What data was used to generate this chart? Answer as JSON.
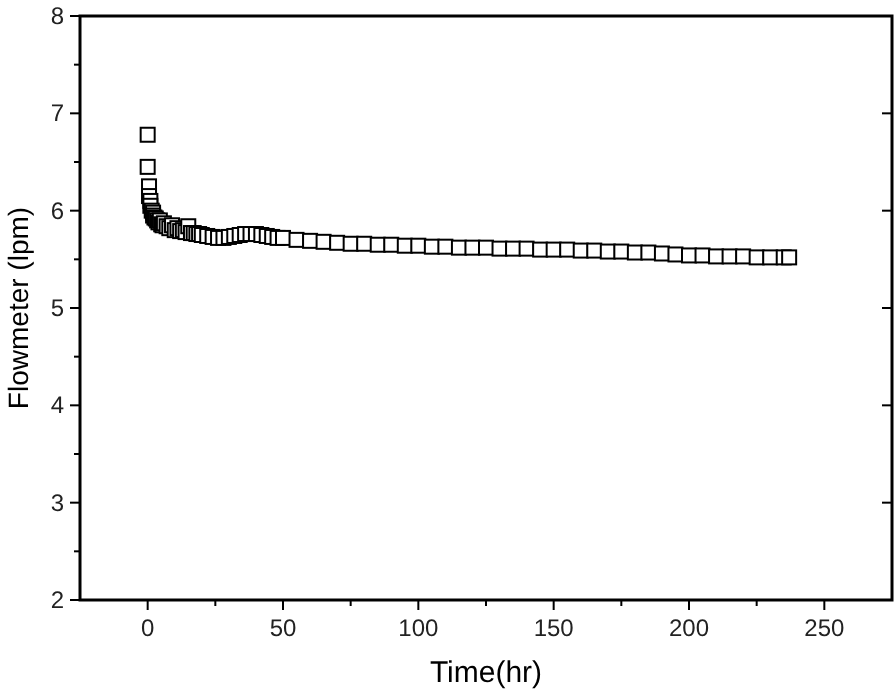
{
  "chart_data": {
    "type": "scatter",
    "xlabel": "Time(hr)",
    "ylabel": "Flowmeter (lpm)",
    "marker": "square",
    "grid": false,
    "xlim": [
      -25,
      275
    ],
    "xticks": [
      0,
      50,
      100,
      150,
      200,
      250
    ],
    "ylim": [
      2,
      8
    ],
    "yticks": [
      2,
      3,
      4,
      5,
      6,
      7,
      8
    ],
    "series": [
      {
        "color": "#000000",
        "x": [
          0,
          0,
          0.5,
          0.5,
          1,
          1,
          1.5,
          2,
          2,
          2.5,
          3,
          3.5,
          4,
          4.5,
          5,
          5.5,
          6,
          7,
          8,
          9,
          10,
          11,
          12,
          13,
          14,
          15,
          16,
          17,
          18,
          19,
          20,
          22,
          24,
          26,
          28,
          30,
          32,
          34,
          36,
          38,
          40,
          42,
          44,
          46,
          48,
          50,
          55,
          60,
          65,
          70,
          75,
          80,
          85,
          90,
          95,
          100,
          105,
          110,
          115,
          120,
          125,
          130,
          135,
          140,
          145,
          150,
          155,
          160,
          165,
          170,
          175,
          180,
          185,
          190,
          195,
          200,
          205,
          210,
          215,
          220,
          225,
          230,
          235,
          237
        ],
        "values": [
          6.78,
          6.45,
          6.25,
          6.15,
          6.1,
          6.05,
          6.0,
          5.98,
          5.95,
          5.93,
          5.92,
          5.9,
          5.88,
          5.9,
          5.86,
          5.85,
          5.87,
          5.84,
          5.82,
          5.85,
          5.8,
          5.82,
          5.79,
          5.8,
          5.78,
          5.84,
          5.77,
          5.77,
          5.76,
          5.76,
          5.75,
          5.74,
          5.73,
          5.72,
          5.72,
          5.73,
          5.74,
          5.75,
          5.76,
          5.76,
          5.76,
          5.75,
          5.74,
          5.73,
          5.72,
          5.72,
          5.7,
          5.69,
          5.68,
          5.67,
          5.66,
          5.66,
          5.65,
          5.65,
          5.64,
          5.64,
          5.63,
          5.63,
          5.62,
          5.62,
          5.62,
          5.61,
          5.61,
          5.61,
          5.6,
          5.6,
          5.6,
          5.59,
          5.59,
          5.58,
          5.58,
          5.57,
          5.57,
          5.56,
          5.55,
          5.54,
          5.54,
          5.53,
          5.53,
          5.53,
          5.52,
          5.52,
          5.52,
          5.52
        ]
      }
    ]
  }
}
